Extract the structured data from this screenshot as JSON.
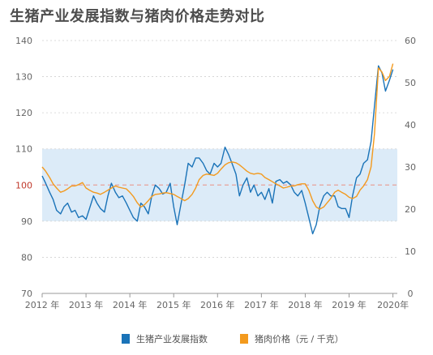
{
  "title": "生猪产业发展指数与猪肉价格走势对比",
  "colors": {
    "index": "#1a73b8",
    "price": "#f39a1e",
    "band": "#dcebf8",
    "reference": "#e8a29a",
    "grid": "#d0d0d0",
    "axis": "#999999"
  },
  "chart_data": {
    "type": "line",
    "title": "生猪产业发展指数与猪肉价格走势对比",
    "xlabel": "",
    "x_ticks": [
      "2012 年",
      "2013 年",
      "2014 年",
      "2015 年",
      "2016 年",
      "2017 年",
      "2018 年",
      "2019 年",
      "2020年"
    ],
    "y_left": {
      "ticks": [
        "140",
        "130",
        "120",
        "110",
        "100",
        "90",
        "80",
        "70"
      ],
      "range": [
        70,
        140
      ],
      "reference": 100,
      "band": [
        90,
        110
      ]
    },
    "y_right": {
      "ticks": [
        "60",
        "50",
        "40",
        "30",
        "20",
        "10",
        "0"
      ],
      "range": [
        0,
        60
      ]
    },
    "grid": true,
    "legend_position": "bottom",
    "series": [
      {
        "name": "生猪产业发展指数",
        "axis": "left",
        "points": [
          [
            2012.0,
            102.5
          ],
          [
            2012.08,
            100.5
          ],
          [
            2012.17,
            98
          ],
          [
            2012.25,
            96
          ],
          [
            2012.33,
            93
          ],
          [
            2012.42,
            92
          ],
          [
            2012.5,
            94
          ],
          [
            2012.58,
            95
          ],
          [
            2012.67,
            92.5
          ],
          [
            2012.75,
            93
          ],
          [
            2012.83,
            91
          ],
          [
            2012.92,
            91.5
          ],
          [
            2013.0,
            90.5
          ],
          [
            2013.08,
            93.5
          ],
          [
            2013.17,
            97
          ],
          [
            2013.25,
            95
          ],
          [
            2013.33,
            93.5
          ],
          [
            2013.42,
            92.5
          ],
          [
            2013.5,
            97
          ],
          [
            2013.58,
            100.5
          ],
          [
            2013.67,
            98
          ],
          [
            2013.75,
            96.5
          ],
          [
            2013.83,
            97
          ],
          [
            2013.92,
            95
          ],
          [
            2014.0,
            93
          ],
          [
            2014.08,
            91
          ],
          [
            2014.17,
            90
          ],
          [
            2014.25,
            95
          ],
          [
            2014.33,
            94
          ],
          [
            2014.42,
            92
          ],
          [
            2014.5,
            97
          ],
          [
            2014.58,
            100
          ],
          [
            2014.67,
            99
          ],
          [
            2014.75,
            97.5
          ],
          [
            2014.83,
            98
          ],
          [
            2014.92,
            100.5
          ],
          [
            2015.0,
            94
          ],
          [
            2015.08,
            89
          ],
          [
            2015.17,
            95
          ],
          [
            2015.25,
            100
          ],
          [
            2015.33,
            106
          ],
          [
            2015.42,
            105
          ],
          [
            2015.5,
            107.5
          ],
          [
            2015.58,
            107.5
          ],
          [
            2015.67,
            106
          ],
          [
            2015.75,
            104
          ],
          [
            2015.83,
            103
          ],
          [
            2015.92,
            106
          ],
          [
            2016.0,
            105
          ],
          [
            2016.08,
            106
          ],
          [
            2016.17,
            110.5
          ],
          [
            2016.25,
            108.5
          ],
          [
            2016.33,
            106
          ],
          [
            2016.42,
            103
          ],
          [
            2016.5,
            97
          ],
          [
            2016.58,
            100
          ],
          [
            2016.67,
            102
          ],
          [
            2016.75,
            98
          ],
          [
            2016.83,
            100
          ],
          [
            2016.92,
            97
          ],
          [
            2017.0,
            98
          ],
          [
            2017.08,
            96
          ],
          [
            2017.17,
            99
          ],
          [
            2017.25,
            95
          ],
          [
            2017.33,
            101
          ],
          [
            2017.42,
            101.5
          ],
          [
            2017.5,
            100.5
          ],
          [
            2017.58,
            101
          ],
          [
            2017.67,
            100
          ],
          [
            2017.75,
            98
          ],
          [
            2017.83,
            97
          ],
          [
            2017.92,
            98.5
          ],
          [
            2018.0,
            95
          ],
          [
            2018.08,
            91
          ],
          [
            2018.17,
            86.5
          ],
          [
            2018.25,
            89
          ],
          [
            2018.33,
            94
          ],
          [
            2018.42,
            97
          ],
          [
            2018.5,
            98
          ],
          [
            2018.58,
            97
          ],
          [
            2018.67,
            97
          ],
          [
            2018.75,
            94
          ],
          [
            2018.83,
            93.5
          ],
          [
            2018.92,
            93.5
          ],
          [
            2019.0,
            91
          ],
          [
            2019.08,
            97
          ],
          [
            2019.17,
            102
          ],
          [
            2019.25,
            103
          ],
          [
            2019.33,
            106
          ],
          [
            2019.42,
            107
          ],
          [
            2019.5,
            112
          ],
          [
            2019.58,
            122
          ],
          [
            2019.67,
            133
          ],
          [
            2019.75,
            131
          ],
          [
            2019.83,
            126
          ],
          [
            2019.92,
            129
          ],
          [
            2020.0,
            132
          ]
        ]
      },
      {
        "name": "猪肉价格（元 / 千克）",
        "axis": "right",
        "points": [
          [
            2012.0,
            30
          ],
          [
            2012.08,
            29
          ],
          [
            2012.17,
            27.5
          ],
          [
            2012.25,
            26
          ],
          [
            2012.33,
            25
          ],
          [
            2012.42,
            24
          ],
          [
            2012.5,
            24.3
          ],
          [
            2012.58,
            24.8
          ],
          [
            2012.67,
            25.5
          ],
          [
            2012.75,
            25.5
          ],
          [
            2012.83,
            25.8
          ],
          [
            2012.92,
            26.3
          ],
          [
            2013.0,
            25
          ],
          [
            2013.08,
            24.5
          ],
          [
            2013.17,
            24
          ],
          [
            2013.25,
            23.8
          ],
          [
            2013.33,
            23.5
          ],
          [
            2013.42,
            24
          ],
          [
            2013.5,
            24.5
          ],
          [
            2013.58,
            25
          ],
          [
            2013.67,
            25.5
          ],
          [
            2013.75,
            25.2
          ],
          [
            2013.83,
            25
          ],
          [
            2013.92,
            24.8
          ],
          [
            2014.0,
            24
          ],
          [
            2014.08,
            23
          ],
          [
            2014.17,
            21.5
          ],
          [
            2014.25,
            20.5
          ],
          [
            2014.33,
            21
          ],
          [
            2014.42,
            22
          ],
          [
            2014.5,
            23
          ],
          [
            2014.58,
            23.5
          ],
          [
            2014.67,
            23.6
          ],
          [
            2014.75,
            23.8
          ],
          [
            2014.83,
            23.9
          ],
          [
            2014.92,
            23.7
          ],
          [
            2015.0,
            23.5
          ],
          [
            2015.08,
            23
          ],
          [
            2015.17,
            22.5
          ],
          [
            2015.25,
            22
          ],
          [
            2015.33,
            22.5
          ],
          [
            2015.42,
            23.5
          ],
          [
            2015.5,
            25
          ],
          [
            2015.58,
            27
          ],
          [
            2015.67,
            28
          ],
          [
            2015.75,
            28.3
          ],
          [
            2015.83,
            28.2
          ],
          [
            2015.92,
            28
          ],
          [
            2016.0,
            28.5
          ],
          [
            2016.08,
            29.5
          ],
          [
            2016.17,
            30.5
          ],
          [
            2016.25,
            31
          ],
          [
            2016.33,
            31.2
          ],
          [
            2016.42,
            31
          ],
          [
            2016.5,
            30.5
          ],
          [
            2016.58,
            29.8
          ],
          [
            2016.67,
            29
          ],
          [
            2016.75,
            28.5
          ],
          [
            2016.83,
            28.3
          ],
          [
            2016.92,
            28.5
          ],
          [
            2017.0,
            28.3
          ],
          [
            2017.08,
            27.5
          ],
          [
            2017.17,
            27
          ],
          [
            2017.25,
            26.5
          ],
          [
            2017.33,
            26
          ],
          [
            2017.42,
            25.5
          ],
          [
            2017.5,
            25
          ],
          [
            2017.58,
            25.2
          ],
          [
            2017.67,
            25.5
          ],
          [
            2017.75,
            25.5
          ],
          [
            2017.83,
            25.8
          ],
          [
            2017.92,
            26
          ],
          [
            2018.0,
            26
          ],
          [
            2018.08,
            24.5
          ],
          [
            2018.17,
            22
          ],
          [
            2018.25,
            20.5
          ],
          [
            2018.33,
            20
          ],
          [
            2018.42,
            20.5
          ],
          [
            2018.5,
            21.5
          ],
          [
            2018.58,
            22.5
          ],
          [
            2018.67,
            24
          ],
          [
            2018.75,
            24.5
          ],
          [
            2018.83,
            24
          ],
          [
            2018.92,
            23.5
          ],
          [
            2019.0,
            22.8
          ],
          [
            2019.08,
            22.5
          ],
          [
            2019.17,
            23
          ],
          [
            2019.25,
            24.5
          ],
          [
            2019.33,
            25.5
          ],
          [
            2019.42,
            27
          ],
          [
            2019.5,
            30
          ],
          [
            2019.58,
            38
          ],
          [
            2019.67,
            53.5
          ],
          [
            2019.75,
            52.5
          ],
          [
            2019.83,
            50.5
          ],
          [
            2019.92,
            51.5
          ],
          [
            2020.0,
            54.5
          ]
        ]
      }
    ]
  },
  "legend": [
    {
      "label": "生猪产业发展指数",
      "color": "#1a73b8"
    },
    {
      "label": "猪肉价格（元 / 千克）",
      "color": "#f39a1e"
    }
  ]
}
